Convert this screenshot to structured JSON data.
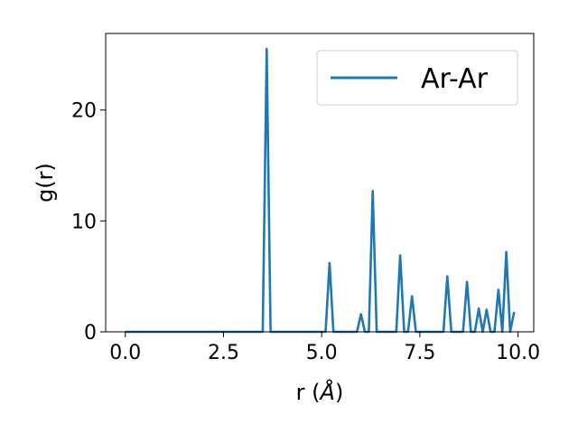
{
  "chart_data": {
    "type": "line",
    "xlabel_main": "r (",
    "xlabel_unit": "Å",
    "xlabel_close": ")",
    "ylabel": "g(r)",
    "xlim": [
      -0.5,
      10.4
    ],
    "ylim": [
      0,
      26.9
    ],
    "xticks": [
      0.0,
      2.5,
      5.0,
      7.5,
      10.0
    ],
    "xtick_labels": [
      "0.0",
      "2.5",
      "5.0",
      "7.5",
      "10.0"
    ],
    "yticks": [
      0,
      10,
      20
    ],
    "ytick_labels": [
      "0",
      "10",
      "20"
    ],
    "grid": false,
    "legend_position": "top-right",
    "series": [
      {
        "name": "Ar-Ar",
        "color": "#1f77b4",
        "x": [
          0.0,
          3.5,
          3.6,
          3.7,
          5.1,
          5.2,
          5.3,
          5.9,
          6.0,
          6.1,
          6.2,
          6.3,
          6.4,
          6.9,
          7.0,
          7.1,
          7.2,
          7.3,
          7.4,
          8.1,
          8.2,
          8.3,
          8.6,
          8.7,
          8.8,
          8.9,
          9.0,
          9.1,
          9.2,
          9.3,
          9.4,
          9.5,
          9.6,
          9.7,
          9.8,
          9.9
        ],
        "y": [
          0,
          0,
          25.5,
          0,
          0,
          6.2,
          0,
          0,
          1.6,
          0,
          0,
          12.7,
          0,
          0,
          6.9,
          0,
          0,
          3.2,
          0,
          0,
          5.0,
          0,
          0,
          4.5,
          0,
          0,
          2.1,
          0,
          2.0,
          0,
          0,
          3.8,
          0,
          7.2,
          0,
          1.8
        ]
      }
    ]
  }
}
